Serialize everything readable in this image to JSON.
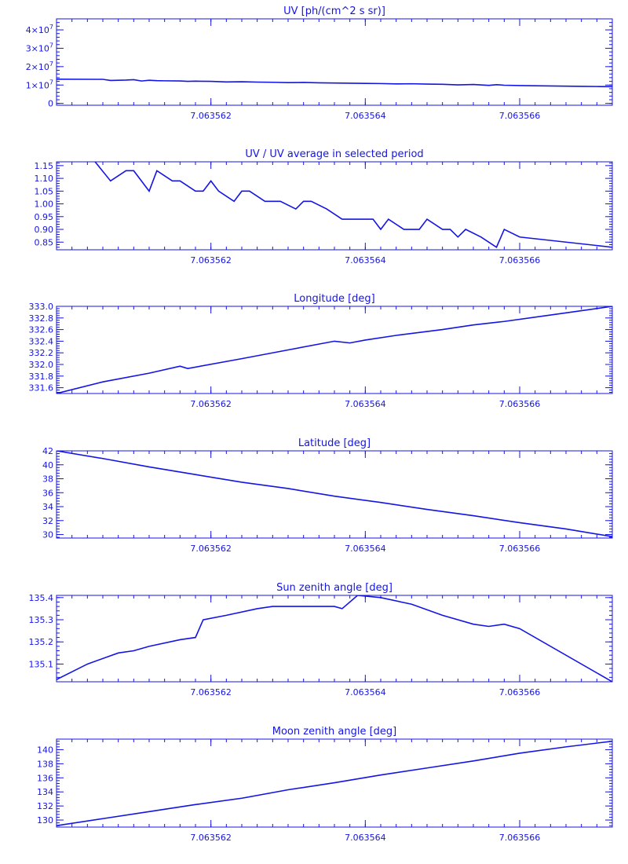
{
  "colors": {
    "ink": "#1414e6",
    "background": "#ffffff"
  },
  "chart_data": [
    {
      "type": "line",
      "title": "UV [ph/(cm^2 s sr)]",
      "xlim": [
        7.06356,
        7.0635672
      ],
      "ylim": [
        -1000000,
        46000000
      ],
      "xticks": [
        {
          "value": 7.063562,
          "label": "7.063562"
        },
        {
          "value": 7.063564,
          "label": "7.063564"
        },
        {
          "value": 7.063566,
          "label": "7.063566"
        }
      ],
      "yticks": [
        {
          "value": 0,
          "label": "0"
        },
        {
          "value": 10000000,
          "label": "1×10",
          "sup": "7"
        },
        {
          "value": 20000000,
          "label": "2×10",
          "sup": "7"
        },
        {
          "value": 30000000,
          "label": "3×10",
          "sup": "7"
        },
        {
          "value": 40000000,
          "label": "4×10",
          "sup": "7"
        }
      ],
      "series": [
        {
          "x": [
            7.06356,
            7.0635606,
            7.0635607,
            7.0635609,
            7.063561,
            7.0635611,
            7.0635612,
            7.0635613,
            7.0635614,
            7.0635616,
            7.0635617,
            7.0635618,
            7.063562,
            7.0635622,
            7.0635624,
            7.0635626,
            7.0635628,
            7.063563,
            7.0635632,
            7.0635634,
            7.0635636,
            7.0635638,
            7.063564,
            7.0635642,
            7.0635644,
            7.0635646,
            7.0635648,
            7.063565,
            7.0635652,
            7.0635654,
            7.0635656,
            7.0635657,
            7.0635658,
            7.063566,
            7.0635662,
            7.0635664,
            7.0635666,
            7.0635668,
            7.063567,
            7.0635672
          ],
          "y": [
            13200000,
            13100000,
            12500000,
            12700000,
            12900000,
            12200000,
            12600000,
            12400000,
            12300000,
            12200000,
            12000000,
            12100000,
            12000000,
            11700000,
            11800000,
            11600000,
            11500000,
            11300000,
            11400000,
            11200000,
            11100000,
            11000000,
            10900000,
            10800000,
            10600000,
            10700000,
            10500000,
            10400000,
            10100000,
            10300000,
            9800000,
            10200000,
            9900000,
            9700000,
            9600000,
            9500000,
            9400000,
            9300000,
            9200000,
            9100000
          ]
        }
      ]
    },
    {
      "type": "line",
      "title": "UV / UV average in selected period",
      "xlim": [
        7.06356,
        7.0635672
      ],
      "ylim": [
        0.82,
        1.165
      ],
      "xticks": [
        {
          "value": 7.063562,
          "label": "7.063562"
        },
        {
          "value": 7.063564,
          "label": "7.063564"
        },
        {
          "value": 7.063566,
          "label": "7.063566"
        }
      ],
      "yticks": [
        {
          "value": 0.85,
          "label": "0.85"
        },
        {
          "value": 0.9,
          "label": "0.90"
        },
        {
          "value": 0.95,
          "label": "0.95"
        },
        {
          "value": 1.0,
          "label": "1.00"
        },
        {
          "value": 1.05,
          "label": "1.05"
        },
        {
          "value": 1.1,
          "label": "1.10"
        },
        {
          "value": 1.15,
          "label": "1.15"
        }
      ],
      "series": [
        {
          "x": [
            7.0635605,
            7.0635607,
            7.0635609,
            7.063561,
            7.0635612,
            7.0635613,
            7.0635615,
            7.0635616,
            7.0635618,
            7.0635619,
            7.063562,
            7.0635621,
            7.0635623,
            7.0635624,
            7.0635625,
            7.0635627,
            7.0635629,
            7.0635631,
            7.0635632,
            7.0635633,
            7.0635635,
            7.0635637,
            7.063564,
            7.0635641,
            7.0635642,
            7.0635643,
            7.0635645,
            7.0635647,
            7.0635648,
            7.063565,
            7.0635651,
            7.0635652,
            7.0635653,
            7.0635655,
            7.0635657,
            7.0635658,
            7.063566,
            7.0635672
          ],
          "y": [
            1.165,
            1.09,
            1.13,
            1.13,
            1.05,
            1.13,
            1.09,
            1.09,
            1.05,
            1.05,
            1.09,
            1.05,
            1.01,
            1.05,
            1.05,
            1.01,
            1.01,
            0.98,
            1.01,
            1.01,
            0.98,
            0.94,
            0.94,
            0.94,
            0.9,
            0.94,
            0.9,
            0.9,
            0.94,
            0.9,
            0.9,
            0.87,
            0.9,
            0.87,
            0.83,
            0.9,
            0.87,
            0.83
          ]
        }
      ]
    },
    {
      "type": "line",
      "title": "Longitude [deg]",
      "xlim": [
        7.06356,
        7.0635672
      ],
      "ylim": [
        331.5,
        333.0
      ],
      "xticks": [
        {
          "value": 7.063562,
          "label": "7.063562"
        },
        {
          "value": 7.063564,
          "label": "7.063564"
        },
        {
          "value": 7.063566,
          "label": "7.063566"
        }
      ],
      "yticks": [
        {
          "value": 331.6,
          "label": "331.6"
        },
        {
          "value": 331.8,
          "label": "331.8"
        },
        {
          "value": 332.0,
          "label": "332.0"
        },
        {
          "value": 332.2,
          "label": "332.2"
        },
        {
          "value": 332.4,
          "label": "332.4"
        },
        {
          "value": 332.6,
          "label": "332.6"
        },
        {
          "value": 332.8,
          "label": "332.8"
        },
        {
          "value": 333.0,
          "label": "333.0"
        }
      ],
      "series": [
        {
          "x": [
            7.06356,
            7.0635606,
            7.0635612,
            7.0635616,
            7.0635617,
            7.0635624,
            7.063563,
            7.0635636,
            7.0635638,
            7.063564,
            7.0635644,
            7.063565,
            7.0635654,
            7.0635658,
            7.0635664,
            7.0635672
          ],
          "y": [
            331.5,
            331.7,
            331.85,
            331.97,
            331.93,
            332.1,
            332.25,
            332.4,
            332.37,
            332.42,
            332.5,
            332.6,
            332.68,
            332.74,
            332.85,
            333.0
          ]
        }
      ]
    },
    {
      "type": "line",
      "title": "Latitude [deg]",
      "xlim": [
        7.06356,
        7.0635672
      ],
      "ylim": [
        29.5,
        42.0
      ],
      "xticks": [
        {
          "value": 7.063562,
          "label": "7.063562"
        },
        {
          "value": 7.063564,
          "label": "7.063564"
        },
        {
          "value": 7.063566,
          "label": "7.063566"
        }
      ],
      "yticks": [
        {
          "value": 30,
          "label": "30"
        },
        {
          "value": 32,
          "label": "32"
        },
        {
          "value": 34,
          "label": "34"
        },
        {
          "value": 36,
          "label": "36"
        },
        {
          "value": 38,
          "label": "38"
        },
        {
          "value": 40,
          "label": "40"
        },
        {
          "value": 42,
          "label": "42"
        }
      ],
      "series": [
        {
          "x": [
            7.06356,
            7.0635606,
            7.0635612,
            7.0635618,
            7.0635624,
            7.063563,
            7.0635636,
            7.0635642,
            7.0635648,
            7.0635654,
            7.063566,
            7.0635666,
            7.0635672
          ],
          "y": [
            42.0,
            40.9,
            39.7,
            38.6,
            37.5,
            36.6,
            35.5,
            34.6,
            33.6,
            32.7,
            31.7,
            30.8,
            29.7
          ]
        }
      ]
    },
    {
      "type": "line",
      "title": "Sun zenith angle [deg]",
      "xlim": [
        7.06356,
        7.0635672
      ],
      "ylim": [
        135.02,
        135.41
      ],
      "xticks": [
        {
          "value": 7.063562,
          "label": "7.063562"
        },
        {
          "value": 7.063564,
          "label": "7.063564"
        },
        {
          "value": 7.063566,
          "label": "7.063566"
        }
      ],
      "yticks": [
        {
          "value": 135.1,
          "label": "135.1"
        },
        {
          "value": 135.2,
          "label": "135.2"
        },
        {
          "value": 135.3,
          "label": "135.3"
        },
        {
          "value": 135.4,
          "label": "135.4"
        }
      ],
      "series": [
        {
          "x": [
            7.06356,
            7.0635604,
            7.0635608,
            7.063561,
            7.0635612,
            7.0635616,
            7.0635618,
            7.0635619,
            7.0635622,
            7.0635626,
            7.0635628,
            7.0635632,
            7.0635636,
            7.0635637,
            7.0635639,
            7.0635642,
            7.0635646,
            7.063565,
            7.0635654,
            7.0635656,
            7.0635658,
            7.063566,
            7.0635672
          ],
          "y": [
            135.03,
            135.1,
            135.15,
            135.16,
            135.18,
            135.21,
            135.22,
            135.3,
            135.32,
            135.35,
            135.36,
            135.36,
            135.36,
            135.35,
            135.41,
            135.4,
            135.37,
            135.32,
            135.28,
            135.27,
            135.28,
            135.26,
            135.02
          ]
        }
      ]
    },
    {
      "type": "line",
      "title": "Moon zenith angle [deg]",
      "xlim": [
        7.06356,
        7.0635672
      ],
      "ylim": [
        129.0,
        141.5
      ],
      "xticks": [
        {
          "value": 7.063562,
          "label": "7.063562"
        },
        {
          "value": 7.063564,
          "label": "7.063564"
        },
        {
          "value": 7.063566,
          "label": "7.063566"
        }
      ],
      "yticks": [
        {
          "value": 130,
          "label": "130"
        },
        {
          "value": 132,
          "label": "132"
        },
        {
          "value": 134,
          "label": "134"
        },
        {
          "value": 136,
          "label": "136"
        },
        {
          "value": 138,
          "label": "138"
        },
        {
          "value": 140,
          "label": "140"
        }
      ],
      "series": [
        {
          "x": [
            7.06356,
            7.0635606,
            7.0635612,
            7.0635618,
            7.0635624,
            7.063563,
            7.0635636,
            7.0635642,
            7.0635648,
            7.0635654,
            7.063566,
            7.0635666,
            7.0635672
          ],
          "y": [
            129.2,
            130.2,
            131.2,
            132.2,
            133.1,
            134.3,
            135.3,
            136.4,
            137.4,
            138.4,
            139.5,
            140.4,
            141.2
          ]
        }
      ]
    }
  ]
}
